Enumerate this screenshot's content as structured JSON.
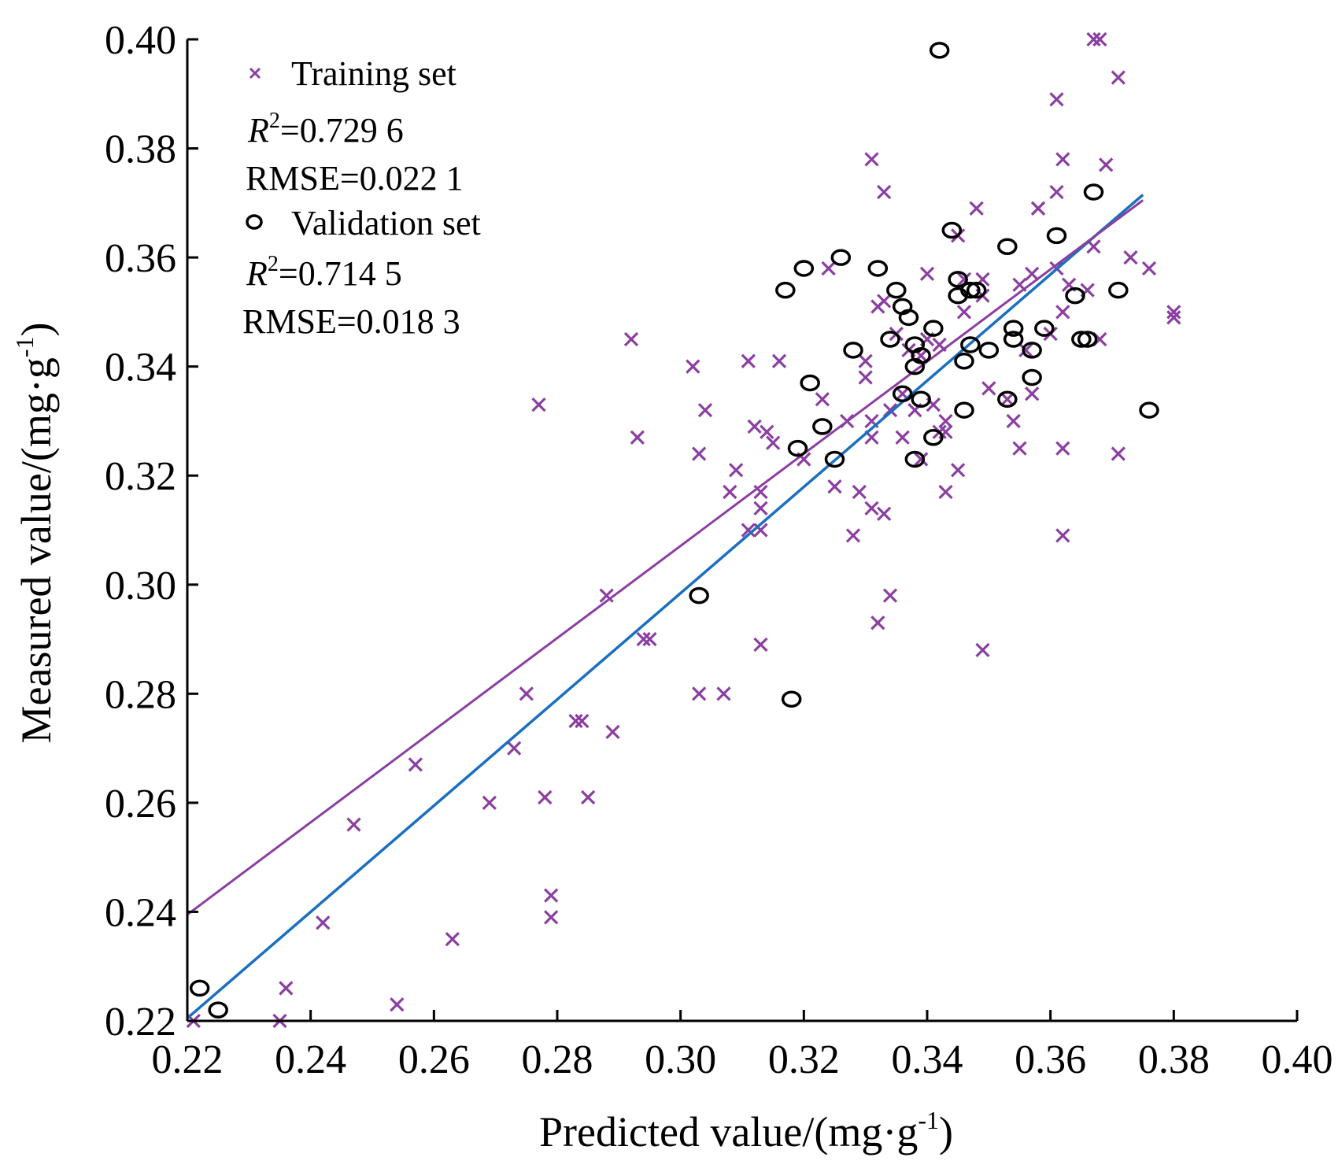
{
  "chart_data": {
    "type": "scatter",
    "xlabel": "Predicted value/(mg·g",
    "xlabel_sup": "-1",
    "xlabel_close": ")",
    "ylabel": "Measured value/(mg·g",
    "ylabel_sup": "-1",
    "ylabel_close": ")",
    "xlim": [
      0.22,
      0.4
    ],
    "ylim": [
      0.22,
      0.4
    ],
    "xticks": [
      "0.22",
      "0.24",
      "0.26",
      "0.28",
      "0.30",
      "0.32",
      "0.34",
      "0.36",
      "0.38",
      "0.40"
    ],
    "yticks": [
      "0.22",
      "0.24",
      "0.26",
      "0.28",
      "0.30",
      "0.32",
      "0.34",
      "0.36",
      "0.38",
      "0.40"
    ],
    "grid": false,
    "legend_position": "top-left",
    "series": [
      {
        "name": "Training set",
        "marker": "x",
        "color": "#8B3FA0",
        "stats": {
          "r2_label": "R",
          "r2_sup": "2",
          "r2_value": "=0.729 6",
          "rmse": "RMSE=0.022 1"
        },
        "fit": {
          "x": [
            0.22,
            0.375
          ],
          "y": [
            0.2395,
            0.3705
          ]
        },
        "points": [
          [
            0.221,
            0.22
          ],
          [
            0.235,
            0.22
          ],
          [
            0.236,
            0.226
          ],
          [
            0.242,
            0.238
          ],
          [
            0.247,
            0.256
          ],
          [
            0.254,
            0.223
          ],
          [
            0.257,
            0.267
          ],
          [
            0.263,
            0.235
          ],
          [
            0.269,
            0.26
          ],
          [
            0.273,
            0.27
          ],
          [
            0.275,
            0.28
          ],
          [
            0.277,
            0.333
          ],
          [
            0.278,
            0.261
          ],
          [
            0.279,
            0.243
          ],
          [
            0.279,
            0.239
          ],
          [
            0.283,
            0.275
          ],
          [
            0.284,
            0.275
          ],
          [
            0.285,
            0.261
          ],
          [
            0.288,
            0.298
          ],
          [
            0.289,
            0.273
          ],
          [
            0.292,
            0.345
          ],
          [
            0.293,
            0.327
          ],
          [
            0.294,
            0.29
          ],
          [
            0.295,
            0.29
          ],
          [
            0.302,
            0.34
          ],
          [
            0.303,
            0.28
          ],
          [
            0.303,
            0.324
          ],
          [
            0.304,
            0.332
          ],
          [
            0.307,
            0.28
          ],
          [
            0.308,
            0.317
          ],
          [
            0.309,
            0.321
          ],
          [
            0.311,
            0.31
          ],
          [
            0.311,
            0.341
          ],
          [
            0.312,
            0.329
          ],
          [
            0.313,
            0.317
          ],
          [
            0.313,
            0.31
          ],
          [
            0.313,
            0.314
          ],
          [
            0.313,
            0.289
          ],
          [
            0.314,
            0.328
          ],
          [
            0.315,
            0.326
          ],
          [
            0.316,
            0.341
          ],
          [
            0.32,
            0.323
          ],
          [
            0.323,
            0.334
          ],
          [
            0.324,
            0.358
          ],
          [
            0.325,
            0.318
          ],
          [
            0.327,
            0.33
          ],
          [
            0.328,
            0.309
          ],
          [
            0.329,
            0.317
          ],
          [
            0.33,
            0.338
          ],
          [
            0.33,
            0.341
          ],
          [
            0.331,
            0.33
          ],
          [
            0.331,
            0.327
          ],
          [
            0.331,
            0.314
          ],
          [
            0.331,
            0.378
          ],
          [
            0.332,
            0.351
          ],
          [
            0.332,
            0.293
          ],
          [
            0.333,
            0.372
          ],
          [
            0.333,
            0.352
          ],
          [
            0.333,
            0.313
          ],
          [
            0.334,
            0.332
          ],
          [
            0.334,
            0.298
          ],
          [
            0.335,
            0.346
          ],
          [
            0.336,
            0.327
          ],
          [
            0.336,
            0.335
          ],
          [
            0.337,
            0.343
          ],
          [
            0.338,
            0.332
          ],
          [
            0.339,
            0.323
          ],
          [
            0.339,
            0.342
          ],
          [
            0.34,
            0.357
          ],
          [
            0.34,
            0.345
          ],
          [
            0.341,
            0.333
          ],
          [
            0.342,
            0.328
          ],
          [
            0.342,
            0.344
          ],
          [
            0.343,
            0.33
          ],
          [
            0.343,
            0.317
          ],
          [
            0.343,
            0.328
          ],
          [
            0.345,
            0.321
          ],
          [
            0.345,
            0.364
          ],
          [
            0.346,
            0.356
          ],
          [
            0.346,
            0.35
          ],
          [
            0.348,
            0.369
          ],
          [
            0.349,
            0.356
          ],
          [
            0.349,
            0.288
          ],
          [
            0.349,
            0.353
          ],
          [
            0.35,
            0.336
          ],
          [
            0.353,
            0.334
          ],
          [
            0.354,
            0.33
          ],
          [
            0.355,
            0.355
          ],
          [
            0.355,
            0.325
          ],
          [
            0.356,
            0.343
          ],
          [
            0.357,
            0.335
          ],
          [
            0.357,
            0.357
          ],
          [
            0.358,
            0.369
          ],
          [
            0.358,
            0.369
          ],
          [
            0.36,
            0.346
          ],
          [
            0.361,
            0.389
          ],
          [
            0.361,
            0.358
          ],
          [
            0.361,
            0.372
          ],
          [
            0.362,
            0.378
          ],
          [
            0.362,
            0.325
          ],
          [
            0.362,
            0.309
          ],
          [
            0.362,
            0.35
          ],
          [
            0.363,
            0.355
          ],
          [
            0.366,
            0.354
          ],
          [
            0.367,
            0.4
          ],
          [
            0.367,
            0.362
          ],
          [
            0.368,
            0.4
          ],
          [
            0.368,
            0.345
          ],
          [
            0.369,
            0.377
          ],
          [
            0.371,
            0.324
          ],
          [
            0.371,
            0.393
          ],
          [
            0.373,
            0.36
          ],
          [
            0.376,
            0.358
          ],
          [
            0.38,
            0.349
          ],
          [
            0.38,
            0.35
          ]
        ]
      },
      {
        "name": "Validation set",
        "marker": "o",
        "color": "#000000",
        "stats": {
          "r2_label": "R",
          "r2_sup": "2",
          "r2_value": "=0.714 5",
          "rmse": "RMSE=0.018 3"
        },
        "fit": {
          "x": [
            0.22,
            0.375
          ],
          "y": [
            0.2205,
            0.3715
          ]
        },
        "points": [
          [
            0.222,
            0.226
          ],
          [
            0.225,
            0.222
          ],
          [
            0.303,
            0.298
          ],
          [
            0.317,
            0.354
          ],
          [
            0.318,
            0.279
          ],
          [
            0.319,
            0.325
          ],
          [
            0.32,
            0.358
          ],
          [
            0.321,
            0.337
          ],
          [
            0.323,
            0.329
          ],
          [
            0.325,
            0.323
          ],
          [
            0.326,
            0.36
          ],
          [
            0.328,
            0.343
          ],
          [
            0.332,
            0.358
          ],
          [
            0.334,
            0.345
          ],
          [
            0.335,
            0.354
          ],
          [
            0.336,
            0.335
          ],
          [
            0.336,
            0.351
          ],
          [
            0.337,
            0.349
          ],
          [
            0.338,
            0.34
          ],
          [
            0.338,
            0.344
          ],
          [
            0.338,
            0.323
          ],
          [
            0.339,
            0.334
          ],
          [
            0.339,
            0.342
          ],
          [
            0.341,
            0.327
          ],
          [
            0.341,
            0.347
          ],
          [
            0.342,
            0.398
          ],
          [
            0.344,
            0.365
          ],
          [
            0.345,
            0.356
          ],
          [
            0.345,
            0.353
          ],
          [
            0.346,
            0.341
          ],
          [
            0.346,
            0.332
          ],
          [
            0.347,
            0.344
          ],
          [
            0.347,
            0.354
          ],
          [
            0.348,
            0.354
          ],
          [
            0.35,
            0.343
          ],
          [
            0.353,
            0.334
          ],
          [
            0.353,
            0.362
          ],
          [
            0.354,
            0.347
          ],
          [
            0.354,
            0.345
          ],
          [
            0.357,
            0.343
          ],
          [
            0.357,
            0.338
          ],
          [
            0.359,
            0.347
          ],
          [
            0.361,
            0.364
          ],
          [
            0.364,
            0.353
          ],
          [
            0.365,
            0.345
          ],
          [
            0.366,
            0.345
          ],
          [
            0.367,
            0.372
          ],
          [
            0.371,
            0.354
          ],
          [
            0.376,
            0.332
          ]
        ]
      }
    ],
    "identity_line_color": "#1A6FC0",
    "fit_line_color": "#8B3FA0"
  }
}
